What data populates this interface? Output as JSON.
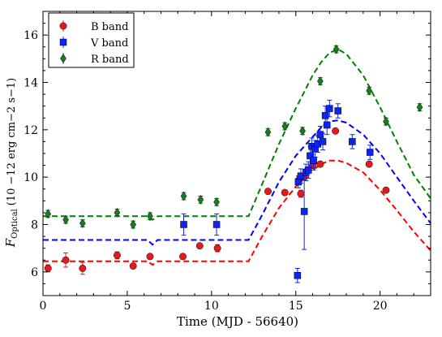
{
  "chart_data": {
    "type": "scatter",
    "title": "",
    "xlabel": "Time (MJD - 56640)",
    "ylabel_main": "F",
    "ylabel_sub": "Optical",
    "ylabel_units": "(10 −12 erg cm−2 s−1)",
    "xlim": [
      0,
      23
    ],
    "ylim": [
      5,
      17
    ],
    "xticks": [
      0,
      5,
      10,
      15,
      20
    ],
    "yticks": [
      6,
      8,
      10,
      12,
      14,
      16
    ],
    "grid": false,
    "legend_position": "top-left",
    "series": [
      {
        "name": "B band",
        "marker": "circle",
        "color": "#e41a1c",
        "points": [
          {
            "x": 0.3,
            "y": 6.15,
            "err": 0.15
          },
          {
            "x": 1.35,
            "y": 6.5,
            "err": 0.3
          },
          {
            "x": 2.35,
            "y": 6.15,
            "err": 0.25
          },
          {
            "x": 4.4,
            "y": 6.7,
            "err": 0.15
          },
          {
            "x": 5.35,
            "y": 6.25,
            "err": 0.1
          },
          {
            "x": 6.35,
            "y": 6.65,
            "err": 0.1
          },
          {
            "x": 8.3,
            "y": 6.65,
            "err": 0.1
          },
          {
            "x": 9.3,
            "y": 7.1,
            "err": 0.1
          },
          {
            "x": 10.35,
            "y": 7.0,
            "err": 0.15
          },
          {
            "x": 13.35,
            "y": 9.4,
            "err": 0.1
          },
          {
            "x": 14.35,
            "y": 9.35,
            "err": 0.1
          },
          {
            "x": 15.2,
            "y": 9.9,
            "err": 0.15
          },
          {
            "x": 15.3,
            "y": 9.3,
            "err": 0.15
          },
          {
            "x": 15.5,
            "y": 10.0,
            "err": 0.1
          },
          {
            "x": 15.7,
            "y": 10.3,
            "err": 0.1
          },
          {
            "x": 16.0,
            "y": 10.5,
            "err": 0.1
          },
          {
            "x": 16.45,
            "y": 10.55,
            "err": 0.1
          },
          {
            "x": 17.35,
            "y": 11.95,
            "err": 0.1
          },
          {
            "x": 19.35,
            "y": 10.55,
            "err": 0.1
          },
          {
            "x": 20.35,
            "y": 9.45,
            "err": 0.1
          }
        ]
      },
      {
        "name": "V band",
        "marker": "square",
        "color": "#0b24fb",
        "points": [
          {
            "x": 8.35,
            "y": 8.0,
            "err": 0.45
          },
          {
            "x": 10.3,
            "y": 8.0,
            "err": 0.45
          },
          {
            "x": 15.1,
            "y": 5.85,
            "err": 0.3
          },
          {
            "x": 15.15,
            "y": 9.8,
            "err": 0.25
          },
          {
            "x": 15.3,
            "y": 10.05,
            "err": 0.3
          },
          {
            "x": 15.5,
            "y": 8.55,
            "err": 1.6
          },
          {
            "x": 15.6,
            "y": 10.2,
            "err": 0.35
          },
          {
            "x": 15.75,
            "y": 10.3,
            "err": 0.35
          },
          {
            "x": 15.85,
            "y": 10.9,
            "err": 0.4
          },
          {
            "x": 15.95,
            "y": 11.3,
            "err": 0.35
          },
          {
            "x": 16.05,
            "y": 10.7,
            "err": 0.4
          },
          {
            "x": 16.15,
            "y": 11.2,
            "err": 0.35
          },
          {
            "x": 16.3,
            "y": 11.4,
            "err": 0.35
          },
          {
            "x": 16.45,
            "y": 11.8,
            "err": 0.35
          },
          {
            "x": 16.6,
            "y": 11.5,
            "err": 0.35
          },
          {
            "x": 16.75,
            "y": 12.6,
            "err": 0.4
          },
          {
            "x": 16.85,
            "y": 12.2,
            "err": 0.4
          },
          {
            "x": 17.0,
            "y": 12.9,
            "err": 0.35
          },
          {
            "x": 17.5,
            "y": 12.8,
            "err": 0.3
          },
          {
            "x": 18.35,
            "y": 11.5,
            "err": 0.3
          },
          {
            "x": 19.4,
            "y": 11.05,
            "err": 0.3
          }
        ]
      },
      {
        "name": "R band",
        "marker": "diamond",
        "color": "#1a7a1e",
        "points": [
          {
            "x": 0.3,
            "y": 8.45,
            "err": 0.15
          },
          {
            "x": 1.35,
            "y": 8.2,
            "err": 0.15
          },
          {
            "x": 2.35,
            "y": 8.05,
            "err": 0.15
          },
          {
            "x": 4.4,
            "y": 8.5,
            "err": 0.15
          },
          {
            "x": 5.35,
            "y": 8.0,
            "err": 0.15
          },
          {
            "x": 6.35,
            "y": 8.35,
            "err": 0.15
          },
          {
            "x": 8.35,
            "y": 9.2,
            "err": 0.15
          },
          {
            "x": 9.35,
            "y": 9.05,
            "err": 0.15
          },
          {
            "x": 10.3,
            "y": 8.95,
            "err": 0.15
          },
          {
            "x": 13.35,
            "y": 11.9,
            "err": 0.15
          },
          {
            "x": 14.35,
            "y": 12.15,
            "err": 0.15
          },
          {
            "x": 15.4,
            "y": 11.95,
            "err": 0.15
          },
          {
            "x": 16.45,
            "y": 14.05,
            "err": 0.15
          },
          {
            "x": 17.4,
            "y": 15.4,
            "err": 0.15
          },
          {
            "x": 19.35,
            "y": 13.65,
            "err": 0.15
          },
          {
            "x": 20.35,
            "y": 12.35,
            "err": 0.15
          },
          {
            "x": 22.35,
            "y": 12.95,
            "err": 0.15
          }
        ]
      }
    ],
    "model_curves": [
      {
        "band": "B band",
        "color": "#ff0000",
        "points": [
          [
            0,
            6.45
          ],
          [
            6.2,
            6.45
          ],
          [
            6.5,
            6.3
          ],
          [
            6.8,
            6.45
          ],
          [
            12.2,
            6.45
          ],
          [
            13,
            7.5
          ],
          [
            14,
            8.7
          ],
          [
            15,
            9.6
          ],
          [
            16,
            10.3
          ],
          [
            16.5,
            10.55
          ],
          [
            17,
            10.7
          ],
          [
            17.5,
            10.7
          ],
          [
            18,
            10.6
          ],
          [
            19,
            10.2
          ],
          [
            20,
            9.45
          ],
          [
            21,
            8.6
          ],
          [
            22,
            7.7
          ],
          [
            23,
            6.9
          ]
        ]
      },
      {
        "band": "V band",
        "color": "#0000ff",
        "points": [
          [
            0,
            7.35
          ],
          [
            6.2,
            7.35
          ],
          [
            6.5,
            7.15
          ],
          [
            6.8,
            7.35
          ],
          [
            12.2,
            7.35
          ],
          [
            13,
            8.4
          ],
          [
            14,
            9.8
          ],
          [
            15,
            10.9
          ],
          [
            16,
            11.7
          ],
          [
            16.5,
            12.1
          ],
          [
            17,
            12.35
          ],
          [
            17.5,
            12.4
          ],
          [
            18,
            12.3
          ],
          [
            19,
            11.8
          ],
          [
            20,
            11.0
          ],
          [
            21,
            10.0
          ],
          [
            22,
            9.0
          ],
          [
            23,
            8.05
          ]
        ]
      },
      {
        "band": "R band",
        "color": "#008000",
        "points": [
          [
            0,
            8.35
          ],
          [
            6.2,
            8.35
          ],
          [
            6.5,
            8.2
          ],
          [
            6.8,
            8.35
          ],
          [
            12.2,
            8.35
          ],
          [
            13,
            9.7
          ],
          [
            14,
            11.4
          ],
          [
            15,
            12.9
          ],
          [
            16,
            14.3
          ],
          [
            16.5,
            14.85
          ],
          [
            17,
            15.25
          ],
          [
            17.5,
            15.4
          ],
          [
            18,
            15.2
          ],
          [
            19,
            14.3
          ],
          [
            20,
            12.95
          ],
          [
            21,
            11.5
          ],
          [
            22,
            10.1
          ],
          [
            23,
            9.1
          ]
        ]
      }
    ]
  }
}
